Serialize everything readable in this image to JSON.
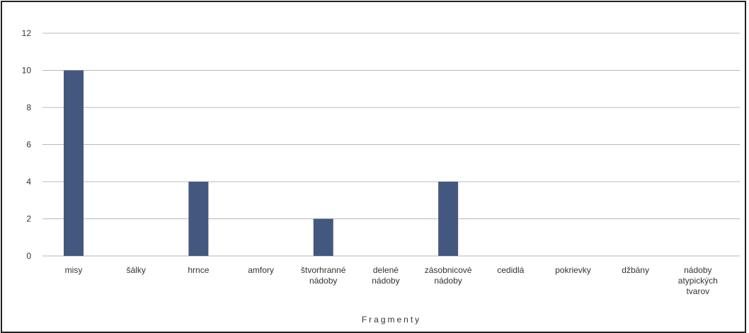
{
  "chart_data": {
    "type": "bar",
    "title": "",
    "xlabel": "Fragmenty",
    "ylabel": "",
    "categories": [
      "misy",
      "šálky",
      "hrnce",
      "amfory",
      "štvorhranné nádoby",
      "delené nádoby",
      "zásobnicové nádoby",
      "cedidlá",
      "pokrievky",
      "džbány",
      "nádoby atypických tvarov"
    ],
    "category_lines": [
      [
        "misy"
      ],
      [
        "šálky"
      ],
      [
        "hrnce"
      ],
      [
        "amfory"
      ],
      [
        "štvorhranné",
        "nádoby"
      ],
      [
        "delené",
        "nádoby"
      ],
      [
        "zásobnicové",
        "nádoby"
      ],
      [
        "cedidlá"
      ],
      [
        "pokrievky"
      ],
      [
        "džbány"
      ],
      [
        "nádoby",
        "atypických",
        "tvarov"
      ]
    ],
    "values": [
      10,
      0,
      4,
      0,
      2,
      0,
      4,
      0,
      0,
      0,
      0
    ],
    "yticks": [
      0,
      2,
      4,
      6,
      8,
      10,
      12
    ],
    "ylim": [
      0,
      12
    ],
    "grid": true,
    "legend": "none",
    "bar_color": "#44587f",
    "grid_color": "#b8b8b8"
  }
}
